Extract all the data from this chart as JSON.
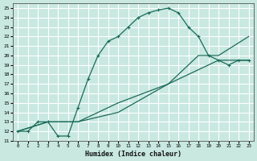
{
  "xlabel": "Humidex (Indice chaleur)",
  "ylabel": "",
  "bg_color": "#c8e8e0",
  "line_color": "#1a6b5a",
  "grid_color": "#ffffff",
  "xlim": [
    -0.5,
    23.5
  ],
  "ylim": [
    11,
    25.5
  ],
  "xticks": [
    0,
    1,
    2,
    3,
    4,
    5,
    6,
    7,
    8,
    9,
    10,
    11,
    12,
    13,
    14,
    15,
    16,
    17,
    18,
    19,
    20,
    21,
    22,
    23
  ],
  "yticks": [
    11,
    12,
    13,
    14,
    15,
    16,
    17,
    18,
    19,
    20,
    21,
    22,
    23,
    24,
    25
  ],
  "series": [
    {
      "x": [
        0,
        1,
        2,
        3,
        4,
        5,
        6,
        7,
        8,
        9,
        10,
        11,
        12,
        13,
        14,
        15,
        16,
        17,
        18,
        19,
        20,
        21,
        22,
        23
      ],
      "y": [
        12,
        12,
        13,
        13,
        11.5,
        11.5,
        14.5,
        17.5,
        20,
        21.5,
        22,
        23,
        24,
        24.5,
        24.8,
        25,
        24.5,
        23,
        22,
        20,
        19.5,
        19,
        19.5,
        19.5
      ]
    },
    {
      "x": [
        0,
        3,
        6,
        10,
        15,
        20,
        23
      ],
      "y": [
        12,
        13,
        13,
        15,
        17,
        19.5,
        19.5
      ]
    },
    {
      "x": [
        0,
        3,
        6,
        10,
        15,
        18,
        20,
        23
      ],
      "y": [
        12,
        13,
        13,
        14,
        17,
        20,
        20,
        22
      ]
    }
  ]
}
